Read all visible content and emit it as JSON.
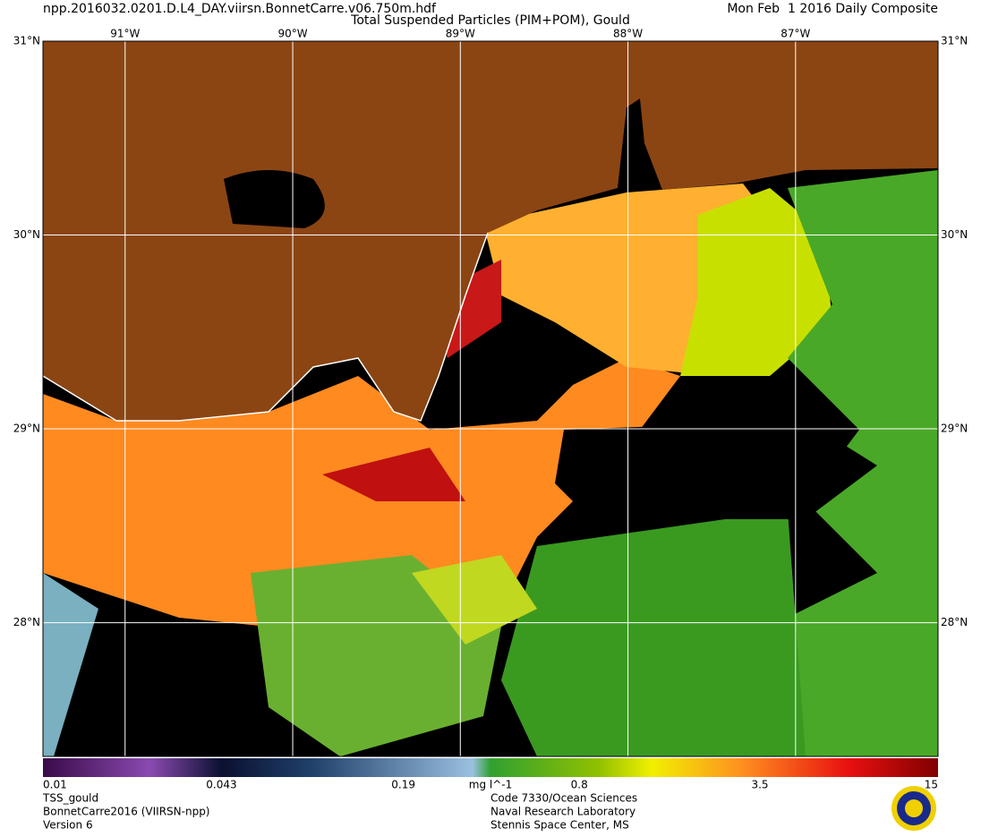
{
  "header": {
    "file": "npp.2016032.0201.D.L4_DAY.viirsn.BonnetCarre.v06.750m.hdf",
    "title": "Total Suspended Particles (PIM+POM), Gould",
    "date": "Mon Feb  1 2016 Daily Composite"
  },
  "map": {
    "lonlim": [
      -91.49,
      -86.15
    ],
    "latlim": [
      27.31,
      31
    ],
    "lat_ticks": [
      {
        "value": 31,
        "label": "31°N"
      },
      {
        "value": 30,
        "label": "30°N"
      },
      {
        "value": 29,
        "label": "29°N"
      },
      {
        "value": 28,
        "label": "28°N"
      }
    ],
    "lon_ticks": [
      {
        "value": -91,
        "label": "91°W"
      },
      {
        "value": -90,
        "label": "90°W"
      },
      {
        "value": -89,
        "label": "89°W"
      },
      {
        "value": -88,
        "label": "88°W"
      },
      {
        "value": -87,
        "label": "87°W"
      }
    ]
  },
  "colorbar": {
    "scale": "log",
    "range": [
      0.01,
      15
    ],
    "ticks": [
      0.01,
      0.043,
      0.19,
      0.8,
      3.5,
      15
    ],
    "unit": "mg l^-1"
  },
  "footer": {
    "left": [
      "TSS_gould",
      "BonnetCarre2016 (VIIRSN-npp)",
      "Version 6"
    ],
    "center": [
      "Code 7330/Ocean Sciences",
      "Naval Research Laboratory",
      "Stennis Space Center, MS"
    ]
  }
}
